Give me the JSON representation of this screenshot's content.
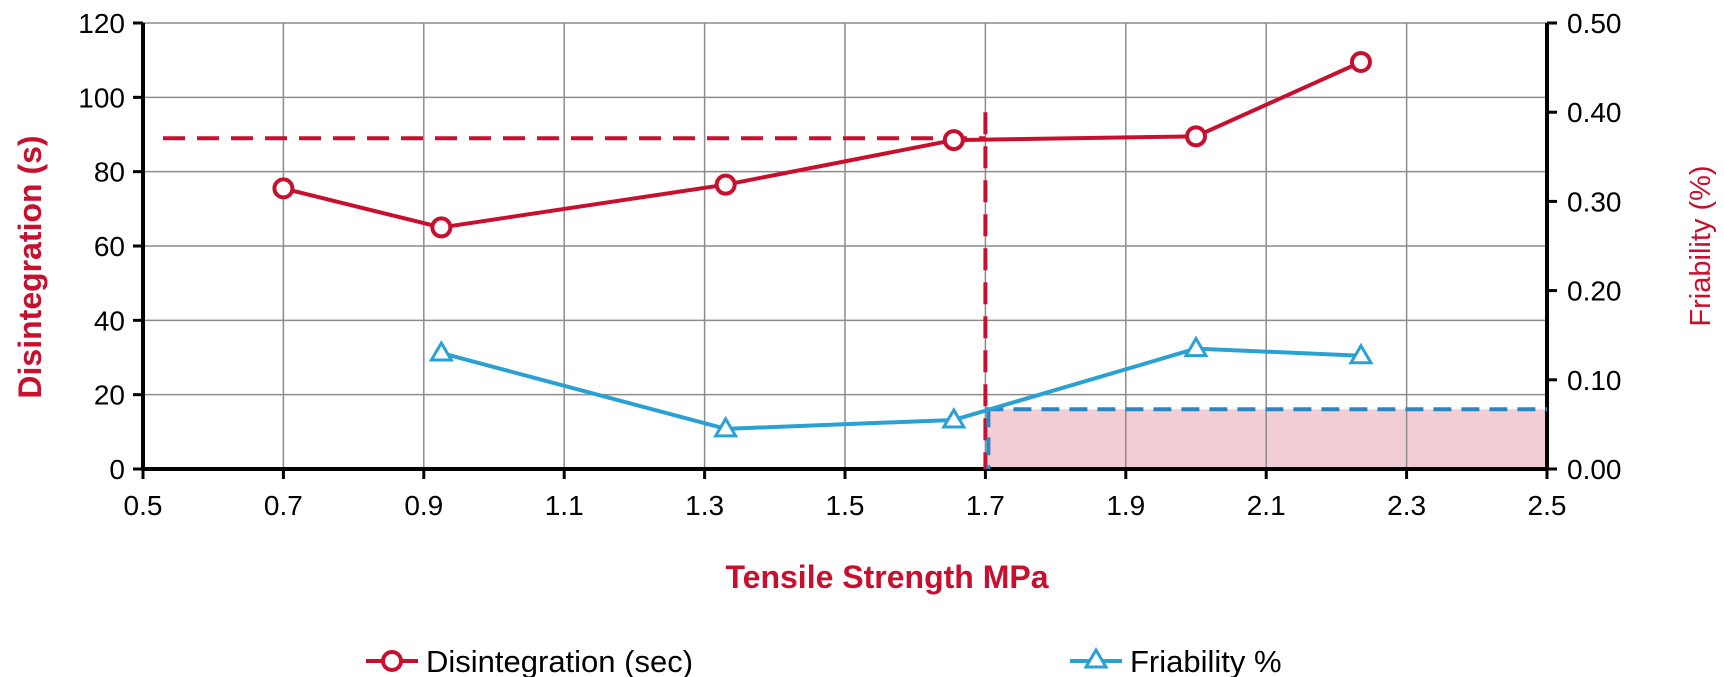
{
  "chart_data": {
    "type": "line",
    "xlabel": "Tensile Strength MPa",
    "ylabel": "Disintegration (s)",
    "y2label": "Friability (%)",
    "xlim": [
      0.5,
      2.5
    ],
    "ylim": [
      0,
      120
    ],
    "y2lim": [
      0,
      0.5
    ],
    "x_ticks": [
      "0.5",
      "0.7",
      "0.9",
      "1.1",
      "1.3",
      "1.5",
      "1.7",
      "1.9",
      "2.1",
      "2.3",
      "2.5"
    ],
    "y_ticks": [
      "0",
      "20",
      "40",
      "60",
      "80",
      "100",
      "120"
    ],
    "y2_ticks": [
      "0.00",
      "0.10",
      "0.20",
      "0.30",
      "0.40",
      "0.50"
    ],
    "grid": true,
    "legend_position": "bottom",
    "series": [
      {
        "name": "Disintegration (sec)",
        "axis": "left",
        "marker": "circle",
        "color": "#C8102E",
        "x": [
          0.7,
          0.925,
          1.33,
          1.655,
          2.0,
          2.235
        ],
        "y": [
          75.5,
          65,
          76.5,
          88.5,
          89.5,
          109.5
        ]
      },
      {
        "name": "Friability %",
        "axis": "right",
        "marker": "triangle",
        "color": "#2AA1D3",
        "x": [
          0.925,
          1.33,
          1.655,
          2.0,
          2.235
        ],
        "y": [
          0.13,
          0.045,
          0.055,
          0.135,
          0.127
        ]
      }
    ],
    "reference_lines": {
      "disintegration_threshold": {
        "y": 89,
        "axis": "left",
        "color": "#C8102E"
      },
      "tensile_threshold": {
        "x": 1.7,
        "color": "#C8102E"
      },
      "friability_threshold": {
        "y": 0.067,
        "axis": "right",
        "color": "#2E86C1"
      }
    },
    "shaded_region": {
      "x": [
        1.7,
        2.5
      ],
      "y2": [
        0,
        0.067
      ],
      "color": "#F3CDD5"
    }
  }
}
